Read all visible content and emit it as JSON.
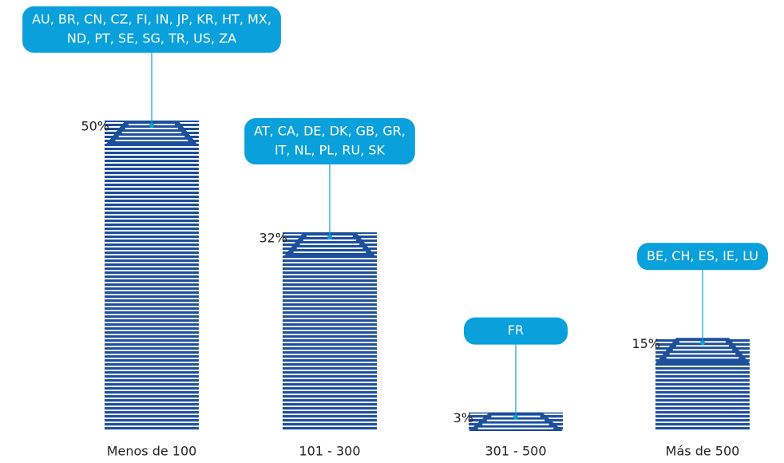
{
  "chart_data": {
    "type": "bar",
    "categories": [
      "Menos de 100",
      "101 - 300",
      "301 - 500",
      "Más de 500"
    ],
    "values": [
      50,
      32,
      3,
      15
    ],
    "value_labels": [
      "50%",
      "32%",
      "3%",
      "15%"
    ],
    "color": "#1c4f9c",
    "annotation_color": "#0aa0dc",
    "annotations": [
      [
        "AU, BR, CN, CZ, FI, IN, JP, KR, HT, MX,",
        "ND, PT, SE, SG, TR, US, ZA"
      ],
      [
        "AT, CA, DE, DK, GB, GR,",
        "IT, NL, PL, RU, SK"
      ],
      [
        "FR"
      ],
      [
        "BE, CH, ES, IE, LU"
      ]
    ]
  }
}
